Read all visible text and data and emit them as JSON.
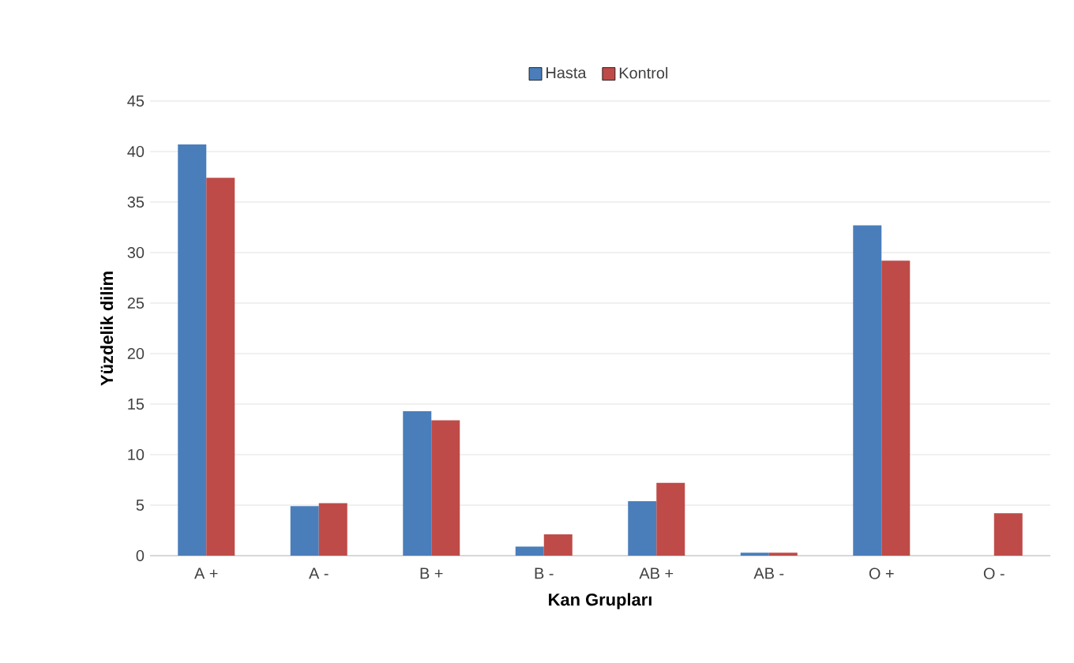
{
  "chart_data": {
    "type": "bar",
    "xlabel": "Kan Grupları",
    "ylabel": "Yüzdelik dilim",
    "categories": [
      "A +",
      "A -",
      "B +",
      "B -",
      "AB +",
      "AB -",
      "O +",
      "O -"
    ],
    "series": [
      {
        "name": "Hasta",
        "color": "#4a7ebb",
        "values": [
          40.7,
          4.9,
          14.3,
          0.9,
          5.4,
          0.3,
          32.7,
          0
        ]
      },
      {
        "name": "Kontrol",
        "color": "#be4b48",
        "values": [
          37.4,
          5.2,
          13.4,
          2.1,
          7.2,
          0.3,
          29.2,
          4.2
        ]
      }
    ],
    "ylim": [
      0,
      45
    ],
    "yticks": [
      0,
      5,
      10,
      15,
      20,
      25,
      30,
      35,
      40,
      45
    ],
    "grid": "y",
    "legend": "top"
  }
}
